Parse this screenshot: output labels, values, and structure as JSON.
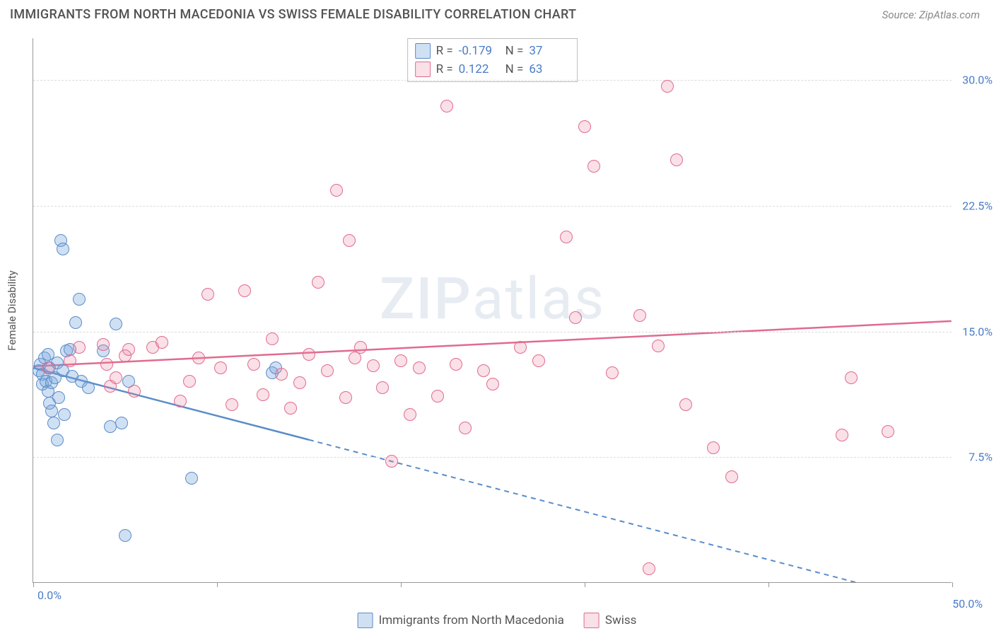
{
  "title": "IMMIGRANTS FROM NORTH MACEDONIA VS SWISS FEMALE DISABILITY CORRELATION CHART",
  "source_label": "Source: ZipAtlas.com",
  "watermark": "ZIPatlas",
  "ylabel": "Female Disability",
  "chart": {
    "type": "scatter",
    "xlim": [
      0,
      50
    ],
    "ylim": [
      0,
      32.5
    ],
    "xticks": [
      0,
      10,
      20,
      30,
      40,
      50
    ],
    "yticks": [
      7.5,
      15.0,
      22.5,
      30.0
    ],
    "ytick_labels": [
      "7.5%",
      "15.0%",
      "22.5%",
      "30.0%"
    ],
    "xmin_label": "0.0%",
    "xmax_label": "50.0%",
    "grid_color": "#dcdcdc",
    "background": "#ffffff",
    "marker_radius": 9,
    "marker_border_width": 1.4,
    "trend_line_width": 2.5
  },
  "series": [
    {
      "name": "Immigrants from North Macedonia",
      "fill": "rgba(120,165,220,0.35)",
      "stroke": "#5a8cc9",
      "R": "-0.179",
      "N": "37",
      "trend": {
        "x1": 0,
        "y1": 12.8,
        "x2": 50,
        "y2": -1.5,
        "solid_until_x": 15
      },
      "points": [
        [
          0.3,
          12.6
        ],
        [
          0.4,
          13.0
        ],
        [
          0.5,
          11.8
        ],
        [
          0.5,
          12.4
        ],
        [
          0.6,
          13.4
        ],
        [
          0.7,
          12.0
        ],
        [
          0.8,
          11.4
        ],
        [
          0.8,
          13.6
        ],
        [
          0.9,
          10.7
        ],
        [
          0.9,
          12.8
        ],
        [
          1.0,
          10.2
        ],
        [
          1.0,
          11.9
        ],
        [
          1.1,
          9.5
        ],
        [
          1.2,
          12.2
        ],
        [
          1.3,
          8.5
        ],
        [
          1.3,
          13.1
        ],
        [
          1.4,
          11.0
        ],
        [
          1.5,
          20.4
        ],
        [
          1.6,
          19.9
        ],
        [
          1.6,
          12.6
        ],
        [
          1.7,
          10.0
        ],
        [
          1.8,
          13.8
        ],
        [
          2.0,
          13.9
        ],
        [
          2.1,
          12.3
        ],
        [
          2.3,
          15.5
        ],
        [
          2.5,
          16.9
        ],
        [
          2.6,
          12.0
        ],
        [
          3.0,
          11.6
        ],
        [
          3.8,
          13.8
        ],
        [
          4.2,
          9.3
        ],
        [
          4.5,
          15.4
        ],
        [
          4.8,
          9.5
        ],
        [
          5.0,
          2.8
        ],
        [
          5.2,
          12.0
        ],
        [
          8.6,
          6.2
        ],
        [
          13.0,
          12.5
        ],
        [
          13.2,
          12.8
        ]
      ]
    },
    {
      "name": "Swiss",
      "fill": "rgba(235,130,160,0.25)",
      "stroke": "#e06b8f",
      "R": "0.122",
      "N": "63",
      "trend": {
        "x1": 0,
        "y1": 12.9,
        "x2": 50,
        "y2": 15.6,
        "solid_until_x": 50
      },
      "points": [
        [
          0.8,
          12.8
        ],
        [
          2.0,
          13.2
        ],
        [
          2.5,
          14.0
        ],
        [
          3.8,
          14.2
        ],
        [
          4.0,
          13.0
        ],
        [
          4.2,
          11.7
        ],
        [
          4.5,
          12.2
        ],
        [
          5.0,
          13.5
        ],
        [
          5.2,
          13.9
        ],
        [
          5.5,
          11.4
        ],
        [
          6.5,
          14.0
        ],
        [
          7.0,
          14.3
        ],
        [
          8.0,
          10.8
        ],
        [
          8.5,
          12.0
        ],
        [
          9.0,
          13.4
        ],
        [
          9.5,
          17.2
        ],
        [
          10.2,
          12.8
        ],
        [
          10.8,
          10.6
        ],
        [
          11.5,
          17.4
        ],
        [
          12.0,
          13.0
        ],
        [
          12.5,
          11.2
        ],
        [
          13.0,
          14.5
        ],
        [
          13.5,
          12.4
        ],
        [
          14.0,
          10.4
        ],
        [
          14.5,
          11.9
        ],
        [
          15.0,
          13.6
        ],
        [
          15.5,
          17.9
        ],
        [
          16.0,
          12.6
        ],
        [
          16.5,
          23.4
        ],
        [
          17.0,
          11.0
        ],
        [
          17.2,
          20.4
        ],
        [
          17.5,
          13.4
        ],
        [
          17.8,
          14.0
        ],
        [
          18.5,
          12.9
        ],
        [
          19.0,
          11.6
        ],
        [
          19.5,
          7.2
        ],
        [
          20.0,
          13.2
        ],
        [
          20.5,
          10.0
        ],
        [
          21.0,
          12.8
        ],
        [
          22.0,
          11.1
        ],
        [
          22.5,
          28.4
        ],
        [
          23.0,
          13.0
        ],
        [
          23.5,
          9.2
        ],
        [
          24.5,
          12.6
        ],
        [
          25.0,
          11.8
        ],
        [
          26.5,
          14.0
        ],
        [
          27.5,
          13.2
        ],
        [
          29.0,
          20.6
        ],
        [
          29.5,
          15.8
        ],
        [
          30.0,
          27.2
        ],
        [
          30.5,
          24.8
        ],
        [
          31.5,
          12.5
        ],
        [
          33.0,
          15.9
        ],
        [
          33.5,
          0.8
        ],
        [
          34.0,
          14.1
        ],
        [
          34.5,
          29.6
        ],
        [
          35.0,
          25.2
        ],
        [
          35.5,
          10.6
        ],
        [
          37.0,
          8.0
        ],
        [
          38.0,
          6.3
        ],
        [
          44.0,
          8.8
        ],
        [
          44.5,
          12.2
        ],
        [
          46.5,
          9.0
        ]
      ]
    }
  ],
  "legend_bottom": [
    {
      "label": "Immigrants from North Macedonia",
      "series": 0
    },
    {
      "label": "Swiss",
      "series": 1
    }
  ]
}
